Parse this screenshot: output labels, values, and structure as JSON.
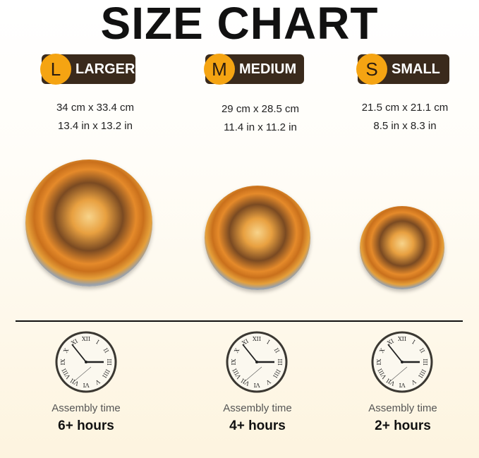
{
  "title": "SIZE CHART",
  "colors": {
    "badge_bg": "#3a2a1c",
    "badge_circle": "#f5a412"
  },
  "sizes": [
    {
      "letter": "L",
      "label": "LARGER",
      "dim_cm": "34 cm x 33.4 cm",
      "dim_in": "13.4 in x 13.2 in",
      "assembly_label": "Assembly time",
      "assembly_time": "6+ hours"
    },
    {
      "letter": "M",
      "label": "MEDIUM",
      "dim_cm": "29 cm x 28.5 cm",
      "dim_in": "11.4 in x 11.2 in",
      "assembly_label": "Assembly time",
      "assembly_time": "4+ hours"
    },
    {
      "letter": "S",
      "label": "SMALL",
      "dim_cm": "21.5 cm x 21.1 cm",
      "dim_in": "8.5 in x 8.3 in",
      "assembly_label": "Assembly time",
      "assembly_time": "2+ hours"
    }
  ],
  "icons": {
    "clock": "clock-icon",
    "product": "fox-plaque-image"
  }
}
